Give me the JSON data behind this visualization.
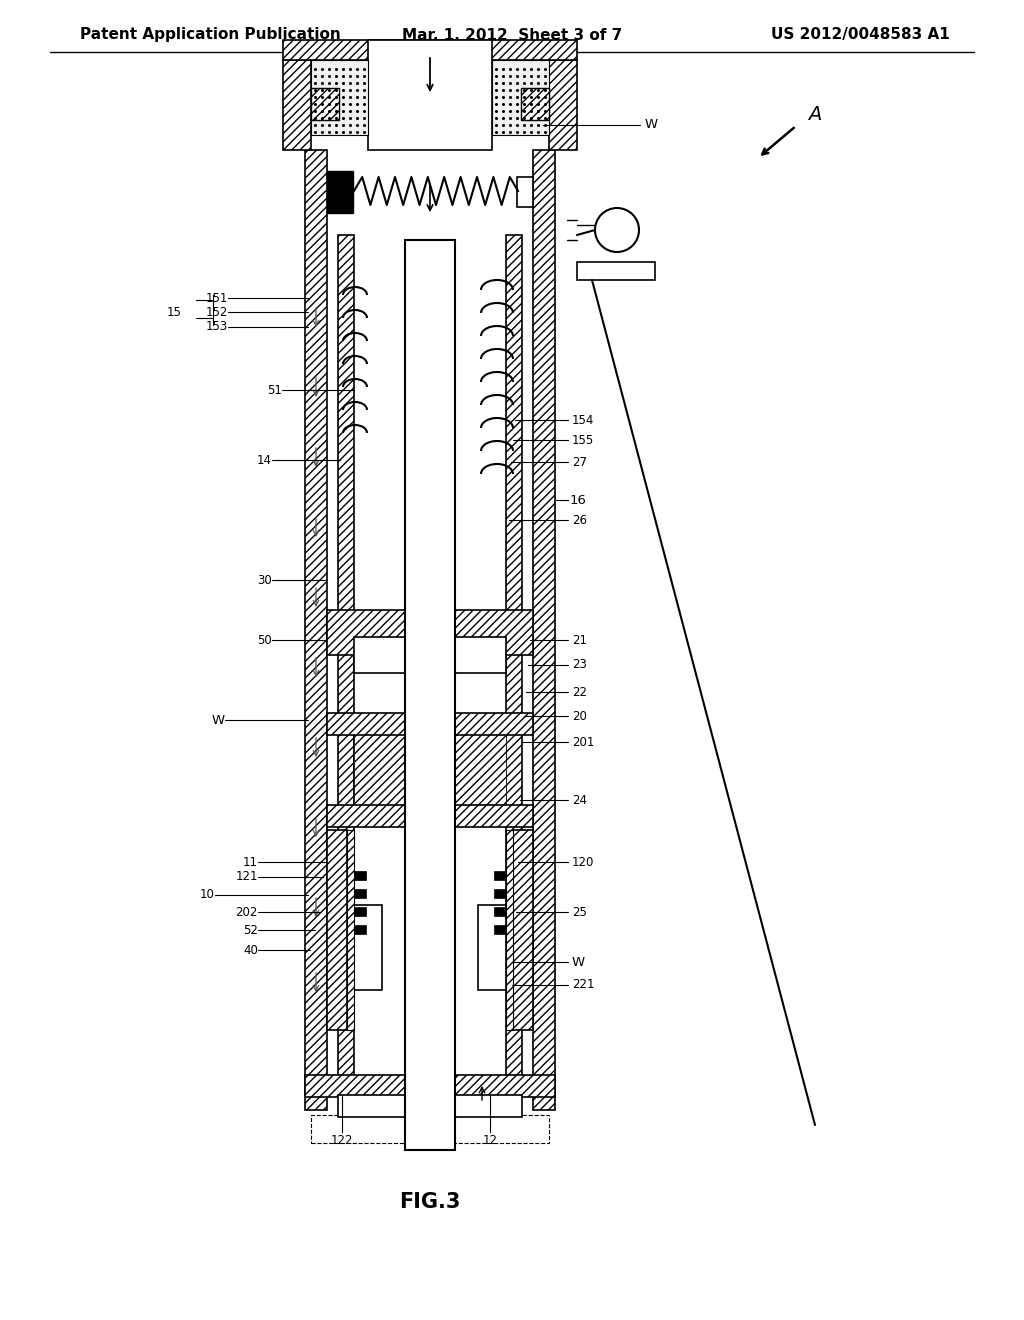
{
  "header_left": "Patent Application Publication",
  "header_center": "Mar. 1, 2012  Sheet 3 of 7",
  "header_right": "US 2012/0048583 A1",
  "caption": "FIG.3",
  "bg_color": "#ffffff",
  "fig_width": 10.24,
  "fig_height": 13.2
}
